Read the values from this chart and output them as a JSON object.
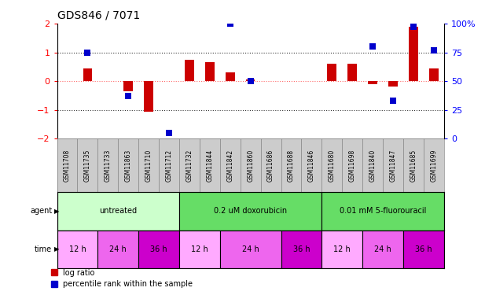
{
  "title": "GDS846 / 7071",
  "samples": [
    "GSM11708",
    "GSM11735",
    "GSM11733",
    "GSM11863",
    "GSM11710",
    "GSM11712",
    "GSM11732",
    "GSM11844",
    "GSM11842",
    "GSM11860",
    "GSM11686",
    "GSM11688",
    "GSM11846",
    "GSM11680",
    "GSM11698",
    "GSM11840",
    "GSM11847",
    "GSM11685",
    "GSM11699"
  ],
  "log_ratio": [
    0.0,
    0.45,
    0.0,
    -0.35,
    -1.05,
    0.0,
    0.75,
    0.65,
    0.3,
    0.05,
    0.0,
    0.0,
    0.0,
    0.6,
    0.6,
    -0.1,
    -0.2,
    1.9,
    0.45
  ],
  "percentile_rank": [
    null,
    75,
    null,
    37,
    null,
    5,
    null,
    null,
    100,
    50,
    null,
    null,
    null,
    null,
    null,
    80,
    33,
    97,
    77
  ],
  "ylim_left": [
    -2,
    2
  ],
  "ylim_right": [
    0,
    100
  ],
  "yticks_left": [
    -2,
    -1,
    0,
    1,
    2
  ],
  "yticks_right": [
    0,
    25,
    50,
    75,
    100
  ],
  "hlines_dotted": [
    1.0,
    -1.0
  ],
  "zero_line_color": "#ff6666",
  "hline_color": "#333333",
  "agents": [
    {
      "label": "untreated",
      "start": 0,
      "end": 6,
      "color": "#ccffcc"
    },
    {
      "label": "0.2 uM doxorubicin",
      "start": 6,
      "end": 13,
      "color": "#66dd66"
    },
    {
      "label": "0.01 mM 5-fluorouracil",
      "start": 13,
      "end": 19,
      "color": "#66dd66"
    }
  ],
  "times": [
    {
      "label": "12 h",
      "start": 0,
      "end": 2,
      "color": "#ffaaff"
    },
    {
      "label": "24 h",
      "start": 2,
      "end": 4,
      "color": "#ee66ee"
    },
    {
      "label": "36 h",
      "start": 4,
      "end": 6,
      "color": "#cc00cc"
    },
    {
      "label": "12 h",
      "start": 6,
      "end": 8,
      "color": "#ffaaff"
    },
    {
      "label": "24 h",
      "start": 8,
      "end": 11,
      "color": "#ee66ee"
    },
    {
      "label": "36 h",
      "start": 11,
      "end": 13,
      "color": "#cc00cc"
    },
    {
      "label": "12 h",
      "start": 13,
      "end": 15,
      "color": "#ffaaff"
    },
    {
      "label": "24 h",
      "start": 15,
      "end": 17,
      "color": "#ee66ee"
    },
    {
      "label": "36 h",
      "start": 17,
      "end": 19,
      "color": "#cc00cc"
    }
  ],
  "bar_color": "#cc0000",
  "dot_color": "#0000cc",
  "bar_width": 0.45,
  "dot_size": 6,
  "gsm_bg_color": "#cccccc",
  "gsm_border_color": "#888888"
}
